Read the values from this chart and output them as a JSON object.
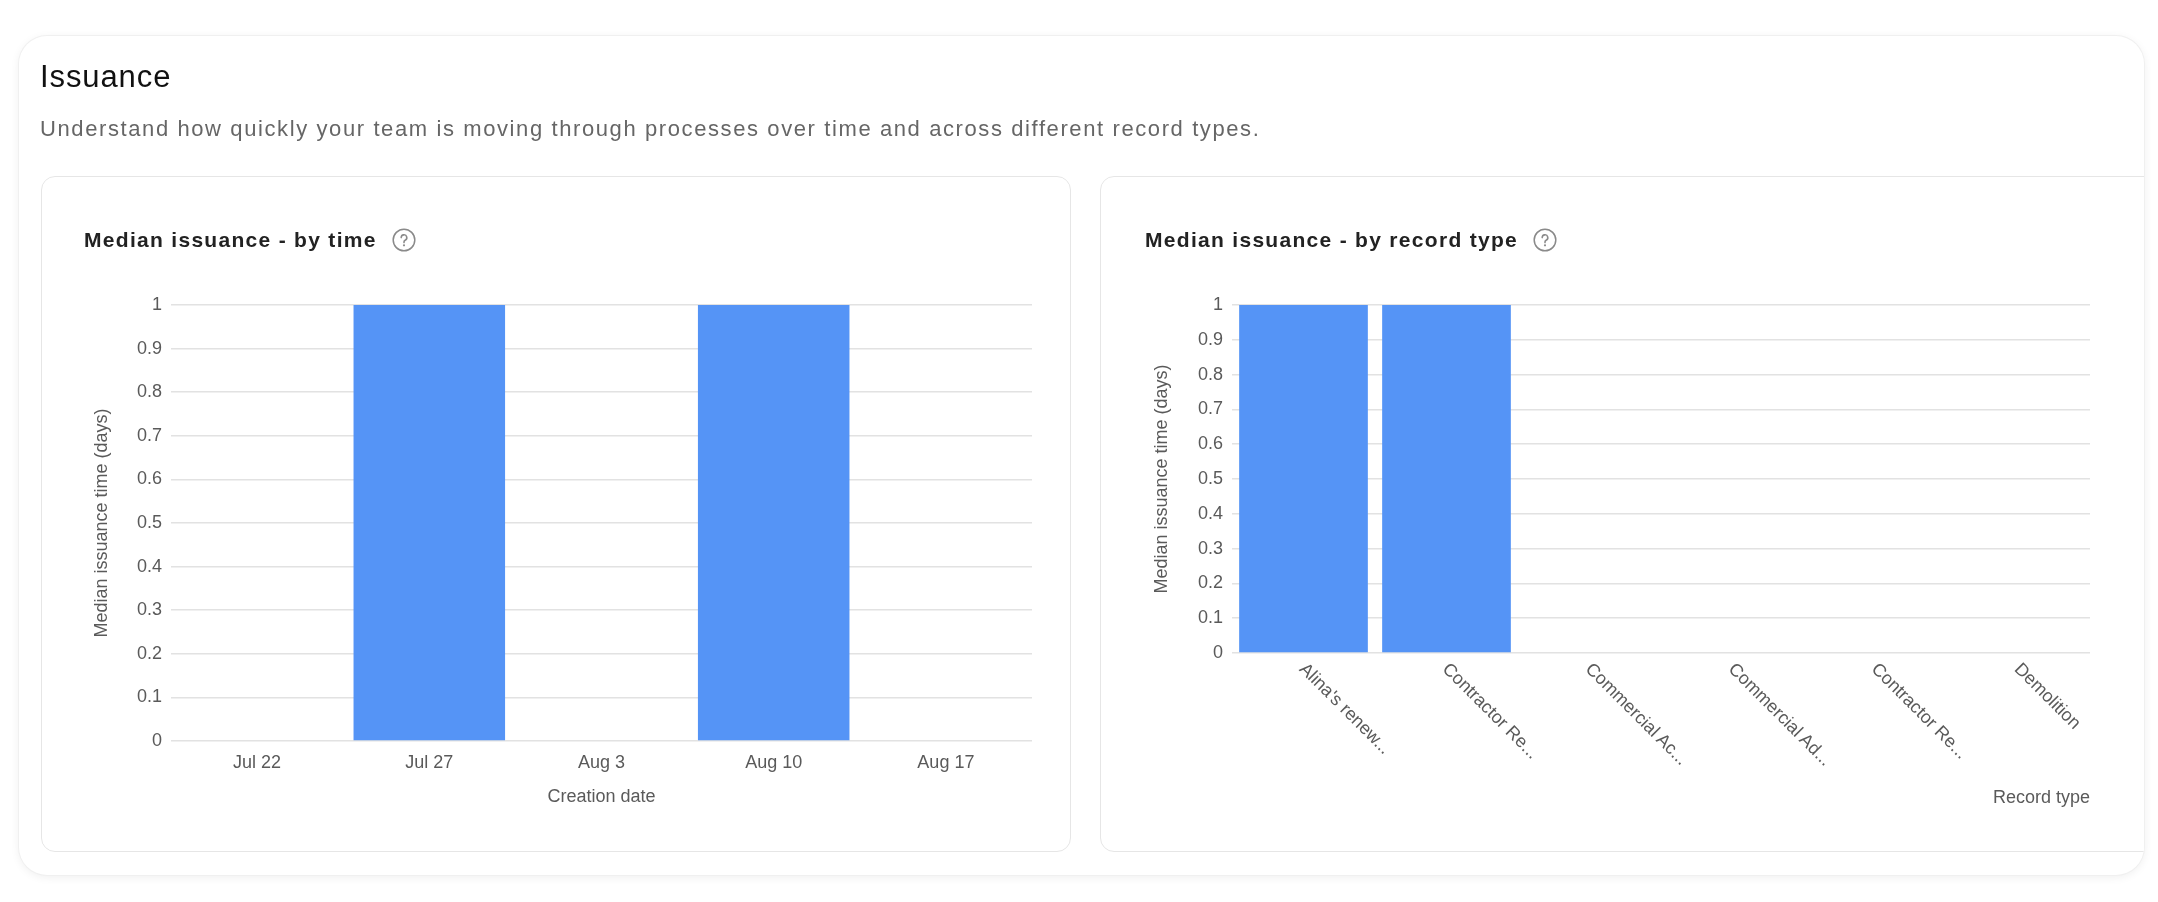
{
  "chart_data": [
    {
      "type": "bar",
      "title": "Median issuance - by time",
      "annotations": [
        "Issuance",
        "Understand how quickly your team is moving through processes over time and across different record types."
      ],
      "xlabel": "Creation date",
      "ylabel": "Median issuance time (days)",
      "categories": [
        "Jul 22",
        "Jul 27",
        "Aug 3",
        "Aug 10",
        "Aug 17"
      ],
      "values": [
        null,
        1,
        null,
        1,
        null
      ],
      "color": "#5594f6",
      "ylim": [
        0,
        1
      ],
      "yticks": [
        0,
        0.1,
        0.2,
        0.3,
        0.4,
        0.5,
        0.6,
        0.7,
        0.8,
        0.9,
        1
      ],
      "grid": "y"
    },
    {
      "type": "bar",
      "title": "Median issuance - by record type",
      "xlabel": "Record type",
      "ylabel": "Median issuance time (days)",
      "categories": [
        "Alina's renew...",
        "Contractor Re...",
        "Commercial Ac...",
        "Commercial Ad...",
        "Contractor Re...",
        "Demolition"
      ],
      "values": [
        1,
        1,
        null,
        null,
        null,
        null
      ],
      "color": "#5594f6",
      "ylim": [
        0,
        1
      ],
      "yticks": [
        0,
        0.1,
        0.2,
        0.3,
        0.4,
        0.5,
        0.6,
        0.7,
        0.8,
        0.9,
        1
      ],
      "grid": "y"
    }
  ]
}
